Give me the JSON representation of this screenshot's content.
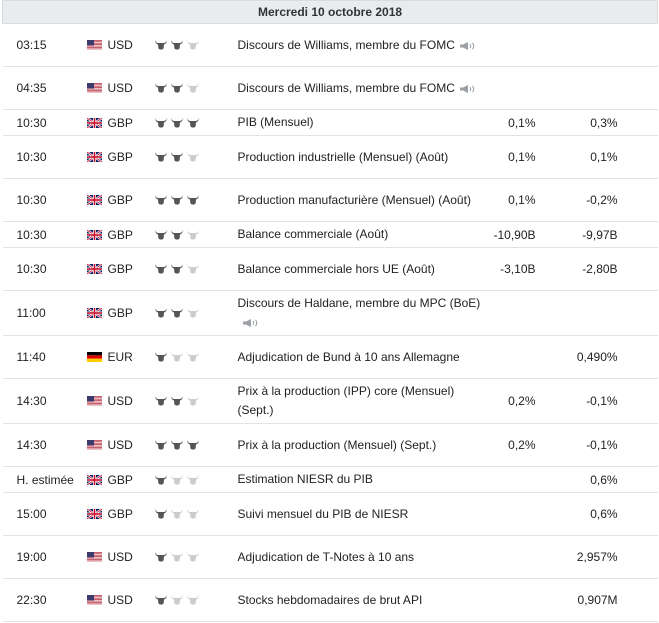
{
  "day_header": "Mercredi 10 octobre 2018",
  "events": [
    {
      "time": "03:15",
      "flag": "us",
      "currency": "USD",
      "impact": 2,
      "event": "Discours de Williams, membre du FOMC",
      "speech": true,
      "actual": "",
      "forecast": "",
      "h": 43
    },
    {
      "time": "04:35",
      "flag": "us",
      "currency": "USD",
      "impact": 2,
      "event": "Discours de Williams, membre du FOMC",
      "speech": true,
      "actual": "",
      "forecast": "",
      "h": 43
    },
    {
      "time": "10:30",
      "flag": "gb",
      "currency": "GBP",
      "impact": 3,
      "event": "PIB (Mensuel)",
      "speech": false,
      "actual": "0,1%",
      "forecast": "0,3%",
      "h": 26
    },
    {
      "time": "10:30",
      "flag": "gb",
      "currency": "GBP",
      "impact": 2,
      "event": "Production industrielle (Mensuel) (Août)",
      "speech": false,
      "actual": "0,1%",
      "forecast": "0,1%",
      "h": 43
    },
    {
      "time": "10:30",
      "flag": "gb",
      "currency": "GBP",
      "impact": 3,
      "event": "Production manufacturière (Mensuel) (Août)",
      "speech": false,
      "actual": "0,1%",
      "forecast": "-0,2%",
      "h": 43
    },
    {
      "time": "10:30",
      "flag": "gb",
      "currency": "GBP",
      "impact": 2,
      "event": "Balance commerciale (Août)",
      "speech": false,
      "actual": "-10,90B",
      "forecast": "-9,97B",
      "h": 26
    },
    {
      "time": "10:30",
      "flag": "gb",
      "currency": "GBP",
      "impact": 2,
      "event": "Balance commerciale hors UE (Août)",
      "speech": false,
      "actual": "-3,10B",
      "forecast": "-2,80B",
      "h": 43
    },
    {
      "time": "11:00",
      "flag": "gb",
      "currency": "GBP",
      "impact": 2,
      "event": "Discours de Haldane, membre du MPC (BoE)",
      "speech": true,
      "actual": "",
      "forecast": "",
      "h": 43
    },
    {
      "time": "11:40",
      "flag": "de",
      "currency": "EUR",
      "impact": 1,
      "event": "Adjudication de Bund à 10 ans Allemagne",
      "speech": false,
      "actual": "",
      "forecast": "0,490%",
      "h": 43
    },
    {
      "time": "14:30",
      "flag": "us",
      "currency": "USD",
      "impact": 2,
      "event": "Prix à la production (IPP) core (Mensuel) (Sept.)",
      "speech": false,
      "actual": "0,2%",
      "forecast": "-0,1%",
      "h": 43
    },
    {
      "time": "14:30",
      "flag": "us",
      "currency": "USD",
      "impact": 3,
      "event": "Prix à la production (Mensuel) (Sept.)",
      "speech": false,
      "actual": "0,2%",
      "forecast": "-0,1%",
      "h": 43
    },
    {
      "time": "H. estimée",
      "flag": "gb",
      "currency": "GBP",
      "impact": 1,
      "event": "Estimation NIESR du PIB",
      "speech": false,
      "actual": "",
      "forecast": "0,6%",
      "h": 26
    },
    {
      "time": "15:00",
      "flag": "gb",
      "currency": "GBP",
      "impact": 1,
      "event": "Suivi mensuel du PIB de NIESR",
      "speech": false,
      "actual": "",
      "forecast": "0,6%",
      "h": 43
    },
    {
      "time": "19:00",
      "flag": "us",
      "currency": "USD",
      "impact": 1,
      "event": "Adjudication de T-Notes à 10 ans",
      "speech": false,
      "actual": "",
      "forecast": "2,957%",
      "h": 43
    },
    {
      "time": "22:30",
      "flag": "us",
      "currency": "USD",
      "impact": 1,
      "event": "Stocks hebdomadaires de brut API",
      "speech": false,
      "actual": "",
      "forecast": "0,907M",
      "h": 43
    }
  ],
  "colors": {
    "bull_on": "#555555",
    "bull_off": "#cccccc",
    "header_bg": "#e9ecef"
  }
}
